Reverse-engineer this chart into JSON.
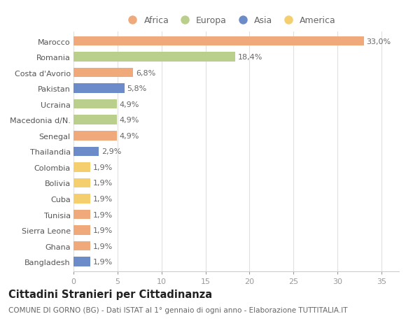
{
  "categories": [
    "Marocco",
    "Romania",
    "Costa d'Avorio",
    "Pakistan",
    "Ucraina",
    "Macedonia d/N.",
    "Senegal",
    "Thailandia",
    "Colombia",
    "Bolivia",
    "Cuba",
    "Tunisia",
    "Sierra Leone",
    "Ghana",
    "Bangladesh"
  ],
  "values": [
    33.0,
    18.4,
    6.8,
    5.8,
    4.9,
    4.9,
    4.9,
    2.9,
    1.9,
    1.9,
    1.9,
    1.9,
    1.9,
    1.9,
    1.9
  ],
  "labels": [
    "33,0%",
    "18,4%",
    "6,8%",
    "5,8%",
    "4,9%",
    "4,9%",
    "4,9%",
    "2,9%",
    "1,9%",
    "1,9%",
    "1,9%",
    "1,9%",
    "1,9%",
    "1,9%",
    "1,9%"
  ],
  "continents": [
    "Africa",
    "Europa",
    "Africa",
    "Asia",
    "Europa",
    "Europa",
    "Africa",
    "Asia",
    "America",
    "America",
    "America",
    "Africa",
    "Africa",
    "Africa",
    "Asia"
  ],
  "colors": {
    "Africa": "#F0A97A",
    "Europa": "#BACF8C",
    "Asia": "#6B8CC9",
    "America": "#F5CE6E"
  },
  "legend_order": [
    "Africa",
    "Europa",
    "Asia",
    "America"
  ],
  "title": "Cittadini Stranieri per Cittadinanza",
  "subtitle": "COMUNE DI GORNO (BG) - Dati ISTAT al 1° gennaio di ogni anno - Elaborazione TUTTITALIA.IT",
  "xlim": [
    0,
    37
  ],
  "xticks": [
    0,
    5,
    10,
    15,
    20,
    25,
    30,
    35
  ],
  "background_color": "#ffffff",
  "grid_color": "#e0e0e0",
  "bar_height": 0.6,
  "label_fontsize": 8,
  "tick_fontsize": 8,
  "title_fontsize": 10.5,
  "subtitle_fontsize": 7.5
}
